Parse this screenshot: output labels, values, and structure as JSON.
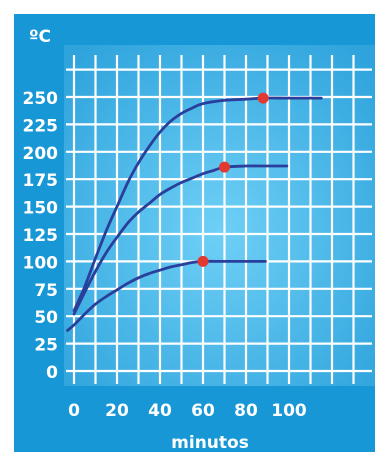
{
  "chart_data": {
    "type": "line",
    "title": "",
    "ylabel": "ºC",
    "xlabel": "minutos",
    "xlim": [
      0,
      120
    ],
    "ylim": [
      0,
      275
    ],
    "xticks": [
      0,
      20,
      40,
      60,
      80,
      100
    ],
    "yticks": [
      0,
      25,
      50,
      75,
      100,
      125,
      150,
      175,
      200,
      225,
      250
    ],
    "grid": true,
    "legend": "none",
    "colors": {
      "frame": "#1797d6",
      "plot": "#5bc1ee",
      "grid": "#ffffff",
      "line": "#2a3e9b",
      "marker": "#e23a30"
    },
    "series": [
      {
        "points": [
          [
            0,
            55
          ],
          [
            5,
            77
          ],
          [
            10,
            103
          ],
          [
            15,
            128
          ],
          [
            20,
            150
          ],
          [
            25,
            172
          ],
          [
            30,
            190
          ],
          [
            35,
            205
          ],
          [
            40,
            218
          ],
          [
            45,
            228
          ],
          [
            50,
            235
          ],
          [
            55,
            240
          ],
          [
            60,
            244
          ],
          [
            70,
            247
          ],
          [
            80,
            248
          ],
          [
            88,
            249
          ],
          [
            100,
            249
          ],
          [
            115,
            249
          ]
        ],
        "marker": [
          88,
          249
        ]
      },
      {
        "points": [
          [
            0,
            52
          ],
          [
            5,
            72
          ],
          [
            10,
            91
          ],
          [
            15,
            108
          ],
          [
            20,
            122
          ],
          [
            25,
            135
          ],
          [
            30,
            145
          ],
          [
            35,
            153
          ],
          [
            40,
            161
          ],
          [
            45,
            167
          ],
          [
            50,
            172
          ],
          [
            55,
            176
          ],
          [
            60,
            180
          ],
          [
            65,
            183
          ],
          [
            70,
            186
          ],
          [
            80,
            187
          ],
          [
            90,
            187
          ],
          [
            99,
            187
          ]
        ],
        "marker": [
          70,
          186
        ]
      },
      {
        "points": [
          [
            -3,
            37
          ],
          [
            0,
            42
          ],
          [
            5,
            52
          ],
          [
            10,
            61
          ],
          [
            15,
            68
          ],
          [
            20,
            74
          ],
          [
            25,
            80
          ],
          [
            30,
            85
          ],
          [
            35,
            89
          ],
          [
            40,
            92
          ],
          [
            45,
            95
          ],
          [
            50,
            97
          ],
          [
            55,
            99
          ],
          [
            60,
            100
          ],
          [
            70,
            100
          ],
          [
            80,
            100
          ],
          [
            89,
            100
          ]
        ],
        "marker": [
          60,
          100
        ]
      }
    ]
  }
}
